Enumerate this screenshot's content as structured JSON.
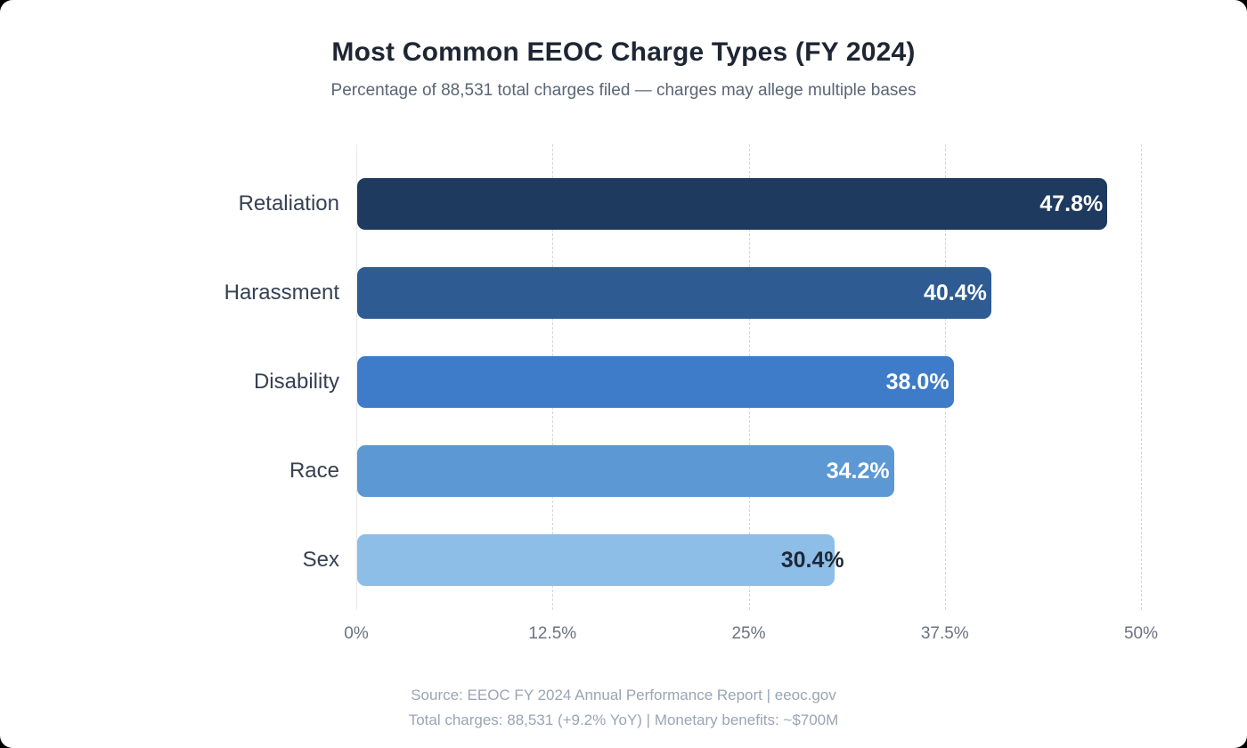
{
  "header": {
    "title": "Most Common EEOC Charge Types (FY 2024)",
    "subtitle": "Percentage of 88,531 total charges filed — charges may allege multiple bases"
  },
  "chart_data": {
    "type": "bar",
    "orientation": "horizontal",
    "title": "Most Common EEOC Charge Types (FY 2024)",
    "subtitle": "Percentage of 88,531 total charges filed — charges may allege multiple bases",
    "categories": [
      "Retaliation",
      "Harassment",
      "Disability",
      "Race",
      "Sex"
    ],
    "values": [
      47.8,
      40.4,
      38.0,
      34.2,
      30.4
    ],
    "value_labels": [
      "47.8%",
      "40.4%",
      "38.0%",
      "34.2%",
      "30.4%"
    ],
    "bar_colors": [
      "#1f3a5f",
      "#2d5b92",
      "#3e7cc9",
      "#5b98d4",
      "#8dbee8"
    ],
    "value_label_colors": [
      "#ffffff",
      "#ffffff",
      "#ffffff",
      "#ffffff",
      "#1f2937"
    ],
    "xlim": [
      0,
      50
    ],
    "x_tick_values": [
      0,
      12.5,
      25,
      37.5,
      50
    ],
    "x_tick_labels": [
      "0%",
      "12.5%",
      "25%",
      "37.5%",
      "50%"
    ],
    "grid": "vertical-dashed",
    "legend": "none",
    "xlabel": "",
    "ylabel": ""
  },
  "footer": {
    "line1": "Source: EEOC FY 2024 Annual Performance Report | eeoc.gov",
    "line2": "Total charges: 88,531 (+9.2% YoY) | Monetary benefits: ~$700M"
  }
}
